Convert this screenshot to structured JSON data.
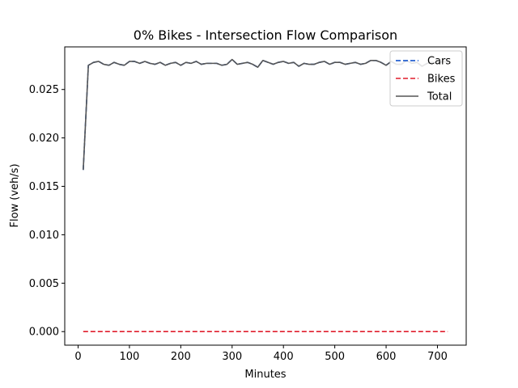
{
  "chart_data": {
    "type": "line",
    "title": "0% Bikes - Intersection Flow Comparison",
    "xlabel": "Minutes",
    "ylabel": "Flow (veh/s)",
    "xlim": [
      -26,
      756
    ],
    "ylim": [
      -0.0014,
      0.0294
    ],
    "xticks": [
      0,
      100,
      200,
      300,
      400,
      500,
      600,
      700
    ],
    "yticks": [
      0.0,
      0.005,
      0.01,
      0.015,
      0.02,
      0.025
    ],
    "ytick_labels": [
      "0.000",
      "0.005",
      "0.010",
      "0.015",
      "0.020",
      "0.025"
    ],
    "legend_position": "top-right",
    "x": [
      10,
      20,
      30,
      40,
      50,
      60,
      70,
      80,
      90,
      100,
      110,
      120,
      130,
      140,
      150,
      160,
      170,
      180,
      190,
      200,
      210,
      220,
      230,
      240,
      250,
      260,
      270,
      280,
      290,
      300,
      310,
      320,
      330,
      340,
      350,
      360,
      370,
      380,
      390,
      400,
      410,
      420,
      430,
      440,
      450,
      460,
      470,
      480,
      490,
      500,
      510,
      520,
      530,
      540,
      550,
      560,
      570,
      580,
      590,
      600,
      610,
      620,
      630,
      640,
      650,
      660,
      670,
      680,
      690,
      700,
      710,
      720
    ],
    "series": [
      {
        "name": "Cars",
        "color": "#0047c8",
        "style": "dashed",
        "values": [
          0.0167,
          0.0275,
          0.0278,
          0.0279,
          0.0276,
          0.0275,
          0.0278,
          0.0276,
          0.0275,
          0.0279,
          0.0279,
          0.0277,
          0.0279,
          0.0277,
          0.0276,
          0.0278,
          0.0275,
          0.0277,
          0.0278,
          0.0275,
          0.0278,
          0.0277,
          0.0279,
          0.0276,
          0.0277,
          0.0277,
          0.0277,
          0.0275,
          0.0276,
          0.0281,
          0.0276,
          0.0277,
          0.0278,
          0.0276,
          0.0273,
          0.028,
          0.0278,
          0.0276,
          0.0278,
          0.0279,
          0.0277,
          0.0278,
          0.0274,
          0.0277,
          0.0276,
          0.0276,
          0.0278,
          0.0279,
          0.0276,
          0.0278,
          0.0278,
          0.0276,
          0.0277,
          0.0278,
          0.0276,
          0.0277,
          0.028,
          0.028,
          0.0278,
          0.0275,
          0.0279,
          0.0276,
          0.0276,
          0.028,
          0.0277,
          0.0278,
          0.0274,
          0.0277,
          0.0278,
          0.0277,
          0.0279,
          0.0278
        ]
      },
      {
        "name": "Bikes",
        "color": "#e01d2c",
        "style": "dashed",
        "values": [
          0,
          0,
          0,
          0,
          0,
          0,
          0,
          0,
          0,
          0,
          0,
          0,
          0,
          0,
          0,
          0,
          0,
          0,
          0,
          0,
          0,
          0,
          0,
          0,
          0,
          0,
          0,
          0,
          0,
          0,
          0,
          0,
          0,
          0,
          0,
          0,
          0,
          0,
          0,
          0,
          0,
          0,
          0,
          0,
          0,
          0,
          0,
          0,
          0,
          0,
          0,
          0,
          0,
          0,
          0,
          0,
          0,
          0,
          0,
          0,
          0,
          0,
          0,
          0,
          0,
          0,
          0,
          0,
          0,
          0,
          0,
          0
        ]
      },
      {
        "name": "Total",
        "color": "#555555",
        "style": "solid",
        "values": [
          0.0167,
          0.0275,
          0.0278,
          0.0279,
          0.0276,
          0.0275,
          0.0278,
          0.0276,
          0.0275,
          0.0279,
          0.0279,
          0.0277,
          0.0279,
          0.0277,
          0.0276,
          0.0278,
          0.0275,
          0.0277,
          0.0278,
          0.0275,
          0.0278,
          0.0277,
          0.0279,
          0.0276,
          0.0277,
          0.0277,
          0.0277,
          0.0275,
          0.0276,
          0.0281,
          0.0276,
          0.0277,
          0.0278,
          0.0276,
          0.0273,
          0.028,
          0.0278,
          0.0276,
          0.0278,
          0.0279,
          0.0277,
          0.0278,
          0.0274,
          0.0277,
          0.0276,
          0.0276,
          0.0278,
          0.0279,
          0.0276,
          0.0278,
          0.0278,
          0.0276,
          0.0277,
          0.0278,
          0.0276,
          0.0277,
          0.028,
          0.028,
          0.0278,
          0.0275,
          0.0279,
          0.0276,
          0.0276,
          0.028,
          0.0277,
          0.0278,
          0.0274,
          0.0277,
          0.0278,
          0.0277,
          0.0279,
          0.0278
        ]
      }
    ]
  }
}
